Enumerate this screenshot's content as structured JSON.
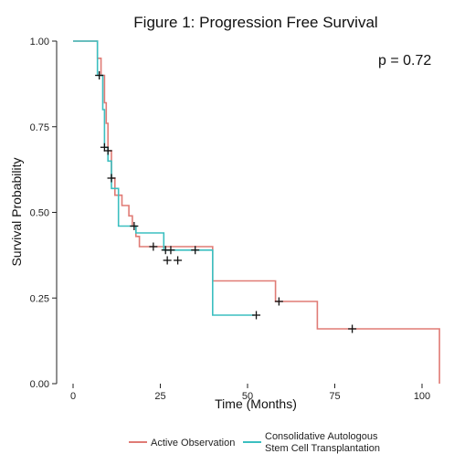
{
  "chart_data": {
    "type": "line",
    "step": true,
    "title": "Figure 1: Progression Free Survival",
    "xlabel": "Time (Months)",
    "ylabel": "Survival Probability",
    "xlim": [
      0,
      105
    ],
    "ylim": [
      0,
      1
    ],
    "xticks": [
      0,
      25,
      50,
      75,
      100
    ],
    "xtick_labels": [
      "0",
      "25",
      "50",
      "75",
      "100"
    ],
    "yticks": [
      0,
      0.25,
      0.5,
      0.75,
      1
    ],
    "ytick_labels": [
      "0.00",
      "0.25",
      "0.50",
      "0.75",
      "1.00"
    ],
    "annotation": "p = 0.72",
    "legend_position": "bottom",
    "series": [
      {
        "name": "Active Observation",
        "color": "#e07b75",
        "points": [
          [
            0,
            1.0
          ],
          [
            7,
            1.0
          ],
          [
            7,
            0.95
          ],
          [
            8,
            0.95
          ],
          [
            8,
            0.9
          ],
          [
            9,
            0.9
          ],
          [
            9,
            0.82
          ],
          [
            9.5,
            0.82
          ],
          [
            9.5,
            0.76
          ],
          [
            10,
            0.76
          ],
          [
            10,
            0.68
          ],
          [
            11,
            0.68
          ],
          [
            11,
            0.6
          ],
          [
            12,
            0.6
          ],
          [
            12,
            0.55
          ],
          [
            14,
            0.55
          ],
          [
            14,
            0.52
          ],
          [
            16,
            0.52
          ],
          [
            16,
            0.49
          ],
          [
            17,
            0.49
          ],
          [
            17,
            0.46
          ],
          [
            18,
            0.46
          ],
          [
            18,
            0.43
          ],
          [
            19,
            0.43
          ],
          [
            19,
            0.4
          ],
          [
            40,
            0.4
          ],
          [
            40,
            0.3
          ],
          [
            58,
            0.3
          ],
          [
            58,
            0.24
          ],
          [
            70,
            0.24
          ],
          [
            70,
            0.16
          ],
          [
            105,
            0.16
          ],
          [
            105,
            0.0
          ]
        ],
        "censors": [
          [
            7.5,
            0.9
          ],
          [
            9,
            0.69
          ],
          [
            10,
            0.68
          ],
          [
            11,
            0.6
          ],
          [
            17.5,
            0.46
          ],
          [
            23,
            0.4
          ],
          [
            26.5,
            0.39
          ],
          [
            28,
            0.39
          ],
          [
            27,
            0.36
          ],
          [
            30,
            0.36
          ],
          [
            35,
            0.39
          ],
          [
            59,
            0.24
          ],
          [
            80,
            0.16
          ]
        ]
      },
      {
        "name": "Consolidative Autologous Stem Cell Transplantation",
        "name_lines": [
          "Consolidative Autologous",
          "Stem Cell Transplantation"
        ],
        "color": "#3bbfc0",
        "points": [
          [
            0,
            1.0
          ],
          [
            7,
            1.0
          ],
          [
            7,
            0.9
          ],
          [
            8.5,
            0.9
          ],
          [
            8.5,
            0.8
          ],
          [
            9,
            0.8
          ],
          [
            9,
            0.69
          ],
          [
            10,
            0.69
          ],
          [
            10,
            0.65
          ],
          [
            11,
            0.65
          ],
          [
            11,
            0.57
          ],
          [
            13,
            0.57
          ],
          [
            13,
            0.46
          ],
          [
            18,
            0.46
          ],
          [
            18,
            0.44
          ],
          [
            26,
            0.44
          ],
          [
            26,
            0.39
          ],
          [
            40,
            0.39
          ],
          [
            40,
            0.2
          ],
          [
            52,
            0.2
          ]
        ],
        "censors": [
          [
            52.5,
            0.2
          ]
        ]
      }
    ]
  }
}
